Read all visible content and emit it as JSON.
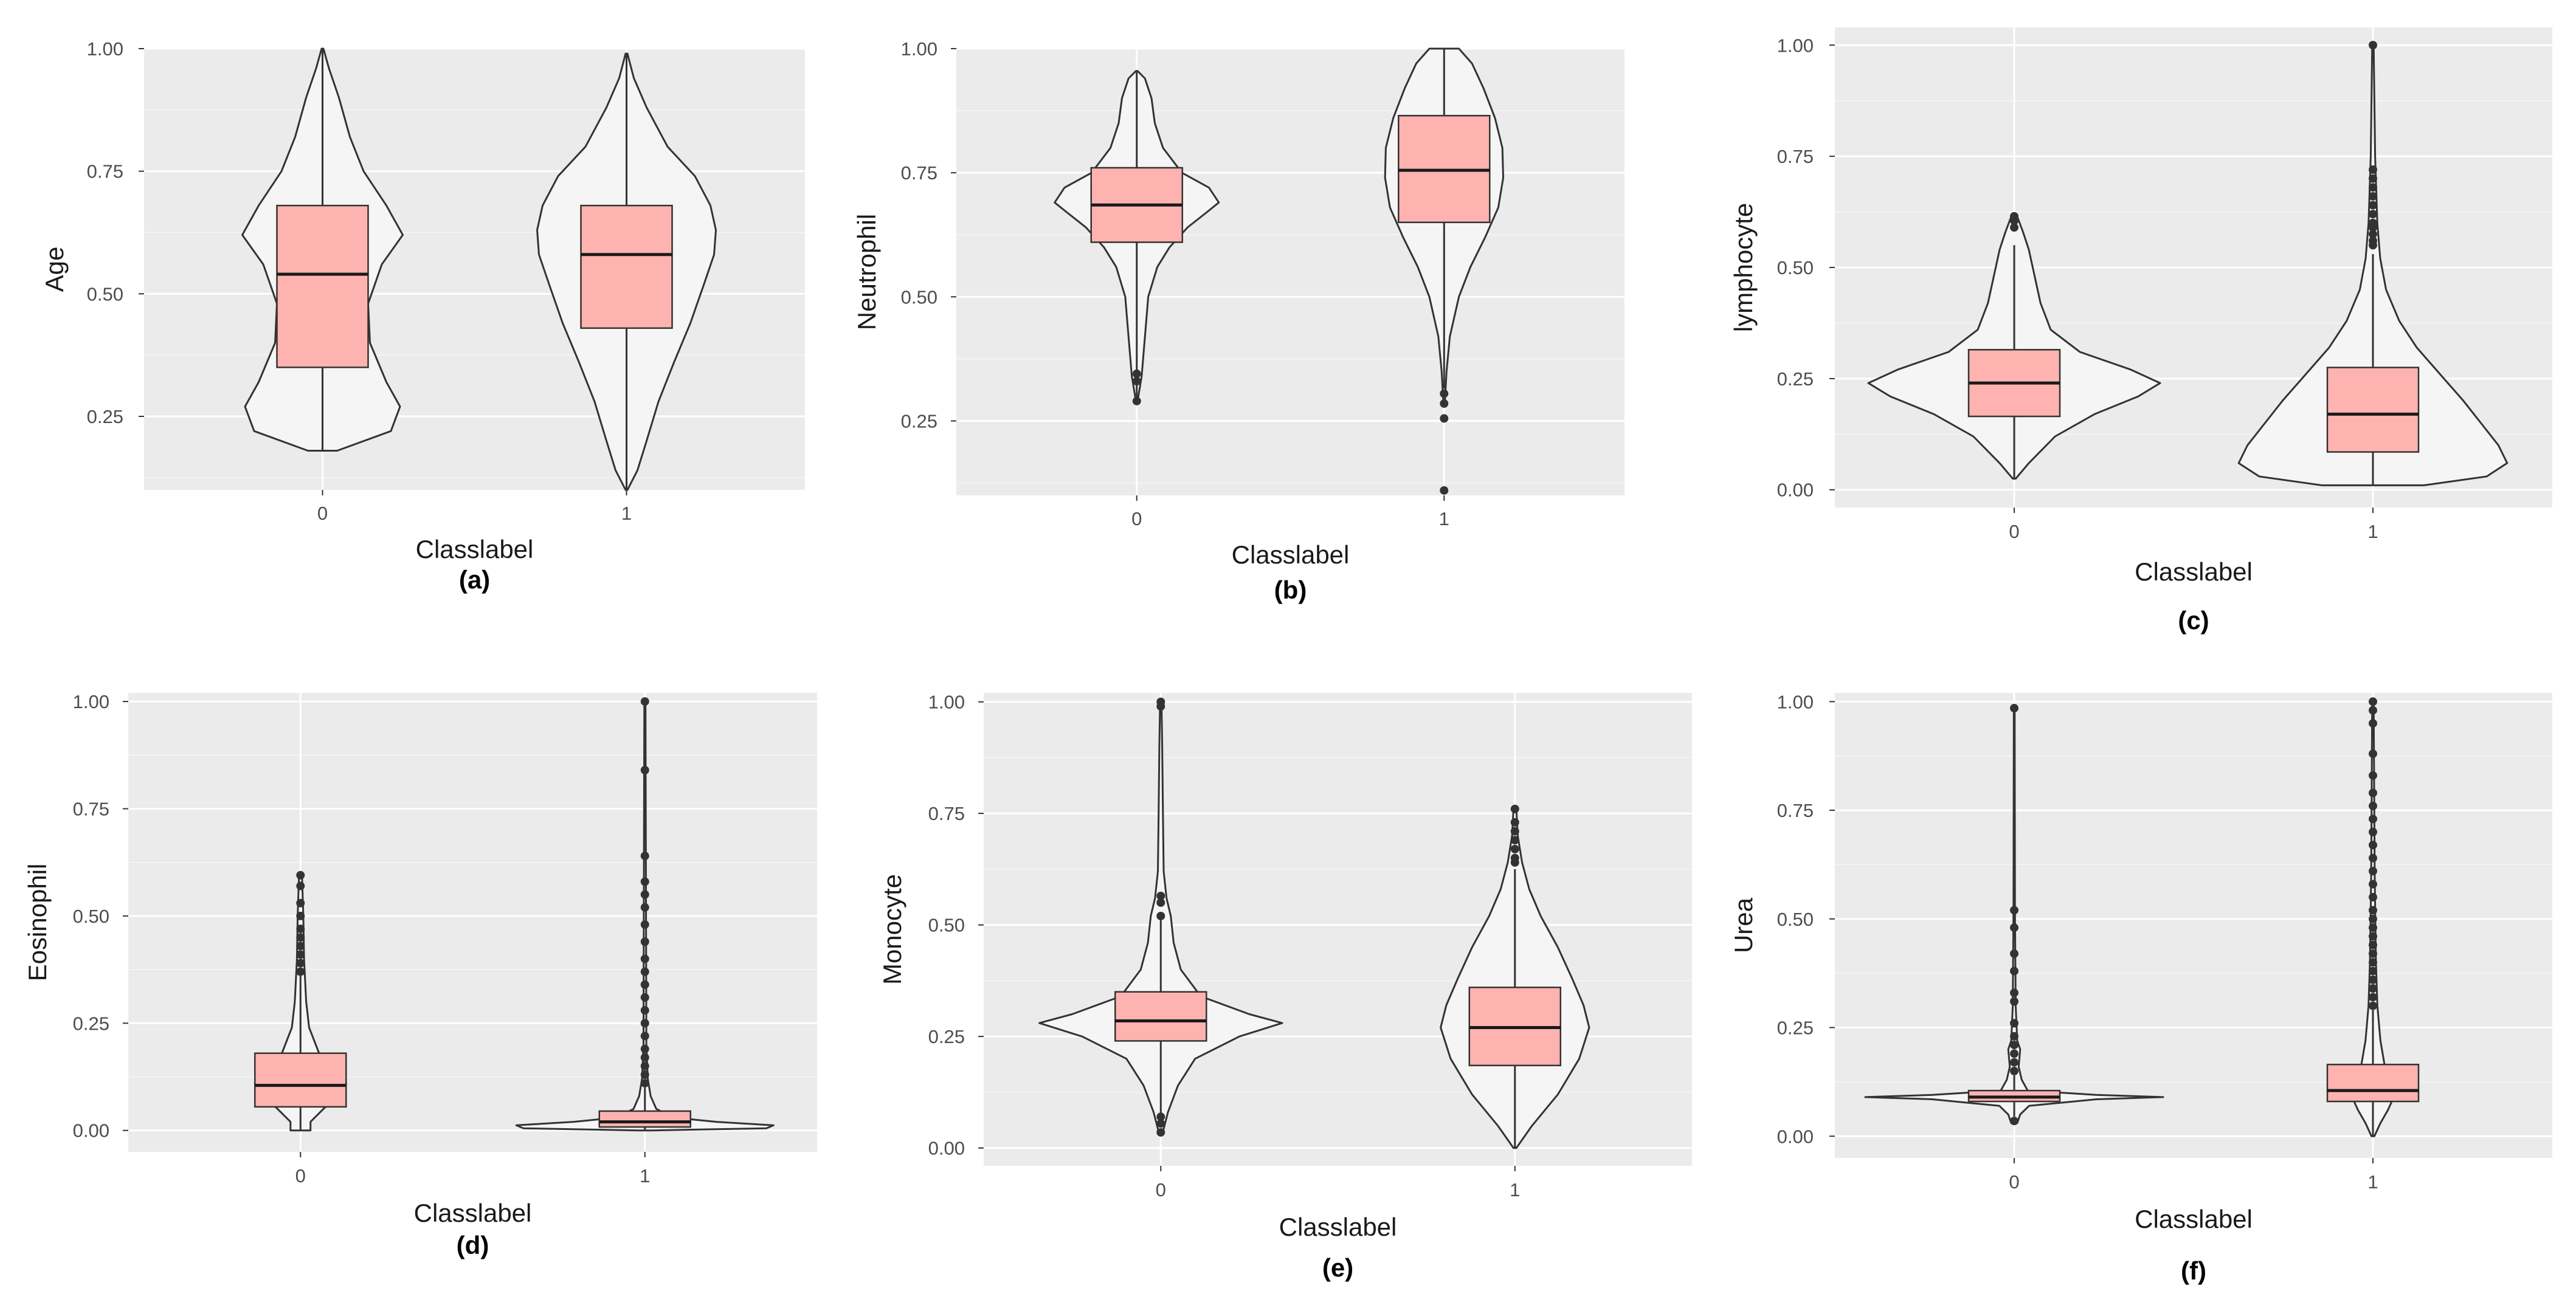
{
  "colors": {
    "panel_bg": "#EBEBEB",
    "grid_major": "#FFFFFF",
    "violin_fill": "#F5F5F5",
    "violin_stroke": "#333333",
    "box_fill": "#FFB3B0",
    "outline": "#333333",
    "point": "#333333"
  },
  "chart_data": [
    {
      "type": "violin",
      "caption": "(a)",
      "xlabel": "Classlabel",
      "ylabel": "Age",
      "categories": [
        "0",
        "1"
      ],
      "ylim": [
        0.1,
        1.0
      ],
      "yticks": [
        0.25,
        0.5,
        0.75,
        1.0
      ],
      "yticklabels": [
        "0.25",
        "0.50",
        "0.75",
        "1.00"
      ],
      "groups": [
        {
          "label": "0",
          "box": {
            "q1": 0.35,
            "median": 0.54,
            "q3": 0.68,
            "whisker_low": 0.18,
            "whisker_high": 1.0
          },
          "outliers": [],
          "violin": [
            [
              0.18,
              0.16
            ],
            [
              0.22,
              0.75
            ],
            [
              0.27,
              0.85
            ],
            [
              0.32,
              0.7
            ],
            [
              0.4,
              0.52
            ],
            [
              0.48,
              0.5
            ],
            [
              0.56,
              0.65
            ],
            [
              0.62,
              0.88
            ],
            [
              0.68,
              0.7
            ],
            [
              0.75,
              0.45
            ],
            [
              0.82,
              0.3
            ],
            [
              0.9,
              0.18
            ],
            [
              0.96,
              0.07
            ],
            [
              1.0,
              0.01
            ]
          ]
        },
        {
          "label": "1",
          "box": {
            "q1": 0.43,
            "median": 0.58,
            "q3": 0.68,
            "whisker_low": 0.1,
            "whisker_high": 0.99
          },
          "outliers": [],
          "violin": [
            [
              0.1,
              0.01
            ],
            [
              0.14,
              0.12
            ],
            [
              0.2,
              0.22
            ],
            [
              0.28,
              0.35
            ],
            [
              0.36,
              0.52
            ],
            [
              0.44,
              0.7
            ],
            [
              0.52,
              0.85
            ],
            [
              0.58,
              0.96
            ],
            [
              0.63,
              0.98
            ],
            [
              0.68,
              0.92
            ],
            [
              0.74,
              0.75
            ],
            [
              0.8,
              0.45
            ],
            [
              0.88,
              0.22
            ],
            [
              0.94,
              0.08
            ],
            [
              0.99,
              0.01
            ]
          ]
        }
      ]
    },
    {
      "type": "violin",
      "caption": "(b)",
      "xlabel": "Classlabel",
      "ylabel": "Neutrophil",
      "categories": [
        "0",
        "1"
      ],
      "ylim": [
        0.1,
        1.0
      ],
      "yticks": [
        0.25,
        0.5,
        0.75,
        1.0
      ],
      "yticklabels": [
        "0.25",
        "0.50",
        "0.75",
        "1.00"
      ],
      "groups": [
        {
          "label": "0",
          "box": {
            "q1": 0.61,
            "median": 0.685,
            "q3": 0.76,
            "whisker_low": 0.29,
            "whisker_high": 0.955
          },
          "outliers": [
            0.29,
            0.33,
            0.345
          ],
          "violin": [
            [
              0.29,
              0.01
            ],
            [
              0.34,
              0.06
            ],
            [
              0.42,
              0.1
            ],
            [
              0.5,
              0.14
            ],
            [
              0.56,
              0.25
            ],
            [
              0.6,
              0.4
            ],
            [
              0.64,
              0.62
            ],
            [
              0.67,
              0.85
            ],
            [
              0.69,
              1.0
            ],
            [
              0.72,
              0.88
            ],
            [
              0.75,
              0.55
            ],
            [
              0.8,
              0.32
            ],
            [
              0.85,
              0.22
            ],
            [
              0.9,
              0.18
            ],
            [
              0.94,
              0.1
            ],
            [
              0.955,
              0.01
            ]
          ]
        },
        {
          "label": "1",
          "box": {
            "q1": 0.65,
            "median": 0.755,
            "q3": 0.865,
            "whisker_low": 0.315,
            "whisker_high": 1.0
          },
          "outliers": [
            0.11,
            0.255,
            0.285,
            0.305
          ],
          "violin": [
            [
              0.29,
              0.01
            ],
            [
              0.35,
              0.03
            ],
            [
              0.42,
              0.07
            ],
            [
              0.5,
              0.18
            ],
            [
              0.56,
              0.32
            ],
            [
              0.62,
              0.5
            ],
            [
              0.68,
              0.66
            ],
            [
              0.74,
              0.72
            ],
            [
              0.8,
              0.71
            ],
            [
              0.86,
              0.62
            ],
            [
              0.92,
              0.48
            ],
            [
              0.97,
              0.34
            ],
            [
              1.0,
              0.18
            ]
          ]
        }
      ]
    },
    {
      "type": "violin",
      "caption": "(c)",
      "xlabel": "Classlabel",
      "ylabel": "lymphocyte",
      "categories": [
        "0",
        "1"
      ],
      "ylim": [
        -0.04,
        1.04
      ],
      "yticks": [
        0.0,
        0.25,
        0.5,
        0.75,
        1.0
      ],
      "yticklabels": [
        "0.00",
        "0.25",
        "0.50",
        "0.75",
        "1.00"
      ],
      "groups": [
        {
          "label": "0",
          "box": {
            "q1": 0.165,
            "median": 0.24,
            "q3": 0.315,
            "whisker_low": 0.025,
            "whisker_high": 0.55
          },
          "outliers": [
            0.59,
            0.605,
            0.615
          ],
          "violin": [
            [
              0.025,
              0.01
            ],
            [
              0.06,
              0.1
            ],
            [
              0.12,
              0.28
            ],
            [
              0.17,
              0.55
            ],
            [
              0.21,
              0.85
            ],
            [
              0.24,
              1.0
            ],
            [
              0.27,
              0.8
            ],
            [
              0.31,
              0.45
            ],
            [
              0.36,
              0.25
            ],
            [
              0.42,
              0.18
            ],
            [
              0.48,
              0.14
            ],
            [
              0.54,
              0.1
            ],
            [
              0.58,
              0.06
            ],
            [
              0.615,
              0.02
            ]
          ]
        },
        {
          "label": "1",
          "box": {
            "q1": 0.085,
            "median": 0.17,
            "q3": 0.275,
            "whisker_low": 0.01,
            "whisker_high": 0.53
          },
          "outliers": [
            0.55,
            0.56,
            0.575,
            0.59,
            0.6,
            0.62,
            0.64,
            0.66,
            0.68,
            0.7,
            0.72,
            1.0
          ],
          "violin": [
            [
              0.01,
              0.35
            ],
            [
              0.03,
              0.78
            ],
            [
              0.06,
              0.92
            ],
            [
              0.1,
              0.86
            ],
            [
              0.15,
              0.74
            ],
            [
              0.2,
              0.62
            ],
            [
              0.26,
              0.46
            ],
            [
              0.32,
              0.3
            ],
            [
              0.38,
              0.18
            ],
            [
              0.45,
              0.09
            ],
            [
              0.52,
              0.05
            ],
            [
              0.6,
              0.03
            ],
            [
              0.75,
              0.015
            ],
            [
              1.0,
              0.005
            ]
          ]
        }
      ]
    },
    {
      "type": "violin",
      "caption": "(d)",
      "xlabel": "Classlabel",
      "ylabel": "Eosinophil",
      "categories": [
        "0",
        "1"
      ],
      "ylim": [
        -0.05,
        1.02
      ],
      "yticks": [
        0.0,
        0.25,
        0.5,
        0.75,
        1.0
      ],
      "yticklabels": [
        "0.00",
        "0.25",
        "0.50",
        "0.75",
        "1.00"
      ],
      "groups": [
        {
          "label": "0",
          "box": {
            "q1": 0.055,
            "median": 0.105,
            "q3": 0.18,
            "whisker_low": 0.0,
            "whisker_high": 0.36
          },
          "outliers": [
            0.37,
            0.39,
            0.41,
            0.43,
            0.45,
            0.47,
            0.5,
            0.53,
            0.57,
            0.595
          ],
          "violin": [
            [
              0.0,
              0.07
            ],
            [
              0.02,
              0.07
            ],
            [
              0.05,
              0.16
            ],
            [
              0.08,
              0.26
            ],
            [
              0.11,
              0.32
            ],
            [
              0.14,
              0.24
            ],
            [
              0.18,
              0.13
            ],
            [
              0.24,
              0.06
            ],
            [
              0.3,
              0.04
            ],
            [
              0.4,
              0.025
            ],
            [
              0.5,
              0.02
            ],
            [
              0.6,
              0.01
            ]
          ]
        },
        {
          "label": "1",
          "box": {
            "q1": 0.008,
            "median": 0.02,
            "q3": 0.045,
            "whisker_low": 0.0,
            "whisker_high": 0.1
          },
          "outliers": [
            0.11,
            0.13,
            0.15,
            0.17,
            0.19,
            0.22,
            0.25,
            0.28,
            0.31,
            0.34,
            0.37,
            0.4,
            0.44,
            0.48,
            0.52,
            0.55,
            0.58,
            0.64,
            0.84,
            1.0
          ],
          "violin": [
            [
              0.0,
              0.05
            ],
            [
              0.005,
              0.85
            ],
            [
              0.012,
              0.9
            ],
            [
              0.02,
              0.5
            ],
            [
              0.03,
              0.2
            ],
            [
              0.05,
              0.08
            ],
            [
              0.08,
              0.04
            ],
            [
              0.12,
              0.02
            ],
            [
              0.2,
              0.01
            ],
            [
              1.0,
              0.004
            ]
          ]
        }
      ]
    },
    {
      "type": "violin",
      "caption": "(e)",
      "xlabel": "Classlabel",
      "ylabel": "Monocyte",
      "categories": [
        "0",
        "1"
      ],
      "ylim": [
        -0.04,
        1.02
      ],
      "yticks": [
        0.0,
        0.25,
        0.5,
        0.75,
        1.0
      ],
      "yticklabels": [
        "0.00",
        "0.25",
        "0.50",
        "0.75",
        "1.00"
      ],
      "groups": [
        {
          "label": "0",
          "box": {
            "q1": 0.24,
            "median": 0.285,
            "q3": 0.35,
            "whisker_low": 0.06,
            "whisker_high": 0.52
          },
          "outliers": [
            0.035,
            0.055,
            0.07,
            0.52,
            0.55,
            0.565,
            0.99,
            1.0
          ],
          "violin": [
            [
              0.03,
              0.01
            ],
            [
              0.08,
              0.05
            ],
            [
              0.14,
              0.12
            ],
            [
              0.2,
              0.24
            ],
            [
              0.25,
              0.55
            ],
            [
              0.28,
              0.85
            ],
            [
              0.3,
              0.62
            ],
            [
              0.34,
              0.28
            ],
            [
              0.4,
              0.14
            ],
            [
              0.46,
              0.09
            ],
            [
              0.52,
              0.07
            ],
            [
              0.56,
              0.04
            ],
            [
              0.62,
              0.02
            ],
            [
              0.75,
              0.015
            ],
            [
              0.9,
              0.01
            ],
            [
              1.0,
              0.005
            ]
          ]
        },
        {
          "label": "1",
          "box": {
            "q1": 0.185,
            "median": 0.27,
            "q3": 0.36,
            "whisker_low": 0.0,
            "whisker_high": 0.625
          },
          "outliers": [
            0.64,
            0.65,
            0.67,
            0.69,
            0.71,
            0.73,
            0.76
          ],
          "violin": [
            [
              0.0,
              0.01
            ],
            [
              0.05,
              0.12
            ],
            [
              0.12,
              0.3
            ],
            [
              0.2,
              0.45
            ],
            [
              0.27,
              0.52
            ],
            [
              0.32,
              0.48
            ],
            [
              0.38,
              0.4
            ],
            [
              0.45,
              0.3
            ],
            [
              0.52,
              0.18
            ],
            [
              0.58,
              0.1
            ],
            [
              0.64,
              0.05
            ],
            [
              0.7,
              0.02
            ],
            [
              0.76,
              0.01
            ]
          ]
        }
      ]
    },
    {
      "type": "violin",
      "caption": "(f)",
      "xlabel": "Classlabel",
      "ylabel": "Urea",
      "categories": [
        "0",
        "1"
      ],
      "ylim": [
        -0.05,
        1.02
      ],
      "yticks": [
        0.0,
        0.25,
        0.5,
        0.75,
        1.0
      ],
      "yticklabels": [
        "0.00",
        "0.25",
        "0.50",
        "0.75",
        "1.00"
      ],
      "groups": [
        {
          "label": "0",
          "box": {
            "q1": 0.08,
            "median": 0.09,
            "q3": 0.105,
            "whisker_low": 0.045,
            "whisker_high": 0.14
          },
          "outliers": [
            0.035,
            0.15,
            0.17,
            0.19,
            0.21,
            0.23,
            0.26,
            0.31,
            0.33,
            0.38,
            0.42,
            0.48,
            0.52,
            0.985
          ],
          "violin": [
            [
              0.03,
              0.02
            ],
            [
              0.05,
              0.04
            ],
            [
              0.07,
              0.1
            ],
            [
              0.085,
              0.55
            ],
            [
              0.09,
              1.0
            ],
            [
              0.095,
              0.55
            ],
            [
              0.105,
              0.09
            ],
            [
              0.13,
              0.05
            ],
            [
              0.16,
              0.03
            ],
            [
              0.2,
              0.04
            ],
            [
              0.22,
              0.02
            ],
            [
              0.3,
              0.01
            ],
            [
              0.52,
              0.005
            ],
            [
              0.985,
              0.003
            ]
          ]
        },
        {
          "label": "1",
          "box": {
            "q1": 0.08,
            "median": 0.105,
            "q3": 0.165,
            "whisker_low": 0.0,
            "whisker_high": 0.29
          },
          "outliers": [
            0.3,
            0.32,
            0.34,
            0.36,
            0.38,
            0.4,
            0.42,
            0.44,
            0.46,
            0.48,
            0.5,
            0.52,
            0.55,
            0.58,
            0.61,
            0.64,
            0.67,
            0.7,
            0.73,
            0.76,
            0.79,
            0.83,
            0.88,
            0.95,
            0.98,
            1.0
          ],
          "violin": [
            [
              0.0,
              0.01
            ],
            [
              0.03,
              0.05
            ],
            [
              0.06,
              0.1
            ],
            [
              0.09,
              0.14
            ],
            [
              0.12,
              0.12
            ],
            [
              0.16,
              0.08
            ],
            [
              0.22,
              0.05
            ],
            [
              0.3,
              0.03
            ],
            [
              0.4,
              0.02
            ],
            [
              0.6,
              0.012
            ],
            [
              0.8,
              0.008
            ],
            [
              1.0,
              0.005
            ]
          ]
        }
      ]
    }
  ]
}
